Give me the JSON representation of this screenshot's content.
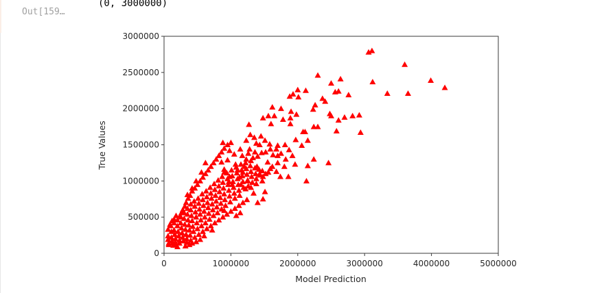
{
  "cell": {
    "prompt": "Out[159…",
    "output_text": "(0, 3000000)"
  },
  "colors": {
    "marker": "#ff0000",
    "axis": "#3a3a3a",
    "text": "#262626"
  },
  "chart_data": {
    "type": "scatter",
    "title": "",
    "xlabel": "Model Prediction",
    "ylabel": "True Values",
    "xlim": [
      0,
      5000000
    ],
    "ylim": [
      0,
      3000000
    ],
    "xticks": [
      0,
      1000000,
      2000000,
      3000000,
      4000000,
      5000000
    ],
    "xtick_labels": [
      "0",
      "1000000",
      "2000000",
      "3000000",
      "4000000",
      "5000000"
    ],
    "yticks": [
      0,
      500000,
      1000000,
      1500000,
      2000000,
      2500000,
      3000000
    ],
    "ytick_labels": [
      "0",
      "500000",
      "1000000",
      "1500000",
      "2000000",
      "2500000",
      "3000000"
    ],
    "grid": false,
    "legend": null,
    "marker": "triangle-up",
    "marker_color": "#ff0000",
    "units_note": "points listed in thousands [x, y]",
    "points_k": [
      [
        3060,
        2780
      ],
      [
        3110,
        2800
      ],
      [
        3600,
        2610
      ],
      [
        2300,
        2460
      ],
      [
        2500,
        2350
      ],
      [
        2640,
        2410
      ],
      [
        3120,
        2370
      ],
      [
        3990,
        2390
      ],
      [
        4200,
        2290
      ],
      [
        2120,
        2250
      ],
      [
        2560,
        2230
      ],
      [
        2610,
        2240
      ],
      [
        2760,
        2190
      ],
      [
        3340,
        2210
      ],
      [
        3650,
        2210
      ],
      [
        1930,
        2200
      ],
      [
        2000,
        2260
      ],
      [
        2010,
        2160
      ],
      [
        1880,
        2170
      ],
      [
        2370,
        2140
      ],
      [
        2410,
        2100
      ],
      [
        2260,
        2050
      ],
      [
        2230,
        1990
      ],
      [
        2480,
        1930
      ],
      [
        2500,
        1900
      ],
      [
        2610,
        1840
      ],
      [
        2700,
        1880
      ],
      [
        2820,
        1900
      ],
      [
        2920,
        1910
      ],
      [
        1620,
        2020
      ],
      [
        1750,
        2000
      ],
      [
        1900,
        1960
      ],
      [
        1560,
        1900
      ],
      [
        1650,
        1900
      ],
      [
        1480,
        1870
      ],
      [
        1890,
        1870
      ],
      [
        1980,
        1920
      ],
      [
        1270,
        1780
      ],
      [
        1600,
        1790
      ],
      [
        1890,
        1790
      ],
      [
        2240,
        1750
      ],
      [
        2300,
        1750
      ],
      [
        1780,
        1850
      ],
      [
        2580,
        1690
      ],
      [
        2940,
        1670
      ],
      [
        1290,
        1640
      ],
      [
        2080,
        1680
      ],
      [
        2110,
        1680
      ],
      [
        1970,
        1570
      ],
      [
        2150,
        1560
      ],
      [
        2060,
        1490
      ],
      [
        1870,
        1430
      ],
      [
        1590,
        1440
      ],
      [
        1550,
        1260
      ],
      [
        1920,
        1350
      ],
      [
        1960,
        1230
      ],
      [
        2240,
        1300
      ],
      [
        2150,
        1210
      ],
      [
        2460,
        1250
      ],
      [
        1560,
        1120
      ],
      [
        1680,
        1130
      ],
      [
        1740,
        1060
      ],
      [
        1860,
        1060
      ],
      [
        2130,
        1000
      ],
      [
        1470,
        1000
      ],
      [
        1340,
        830
      ],
      [
        1510,
        850
      ],
      [
        1400,
        700
      ],
      [
        1480,
        750
      ],
      [
        1300,
        910
      ],
      [
        1380,
        960
      ],
      [
        1430,
        1100
      ],
      [
        1590,
        1170
      ],
      [
        1180,
        1120
      ],
      [
        1100,
        1150
      ],
      [
        1200,
        1200
      ],
      [
        1390,
        1200
      ],
      [
        950,
        1290
      ],
      [
        970,
        990
      ],
      [
        1250,
        1000
      ],
      [
        1130,
        1050
      ],
      [
        1070,
        1230
      ],
      [
        1020,
        950
      ],
      [
        1150,
        950
      ],
      [
        1220,
        890
      ],
      [
        980,
        1060
      ],
      [
        900,
        1120
      ],
      [
        1230,
        1300
      ],
      [
        1330,
        1320
      ],
      [
        1400,
        1340
      ],
      [
        1460,
        1390
      ],
      [
        1520,
        1400
      ],
      [
        1630,
        1360
      ],
      [
        1700,
        1350
      ],
      [
        1750,
        1380
      ],
      [
        1820,
        1300
      ],
      [
        1700,
        1250
      ],
      [
        1620,
        1200
      ],
      [
        1800,
        1200
      ],
      [
        1360,
        1400
      ],
      [
        1300,
        1280
      ],
      [
        1260,
        1380
      ],
      [
        1430,
        1500
      ],
      [
        1380,
        1520
      ],
      [
        1510,
        1560
      ],
      [
        1580,
        1510
      ],
      [
        1700,
        1490
      ],
      [
        1680,
        1440
      ],
      [
        1810,
        1500
      ],
      [
        1140,
        1440
      ],
      [
        1280,
        1440
      ],
      [
        1350,
        1600
      ],
      [
        1450,
        1620
      ],
      [
        1230,
        1560
      ],
      [
        1170,
        1350
      ],
      [
        1050,
        1370
      ],
      [
        980,
        1420
      ],
      [
        860,
        1260
      ],
      [
        900,
        1160
      ],
      [
        60,
        330
      ],
      [
        60,
        240
      ],
      [
        60,
        190
      ],
      [
        70,
        140
      ],
      [
        70,
        120
      ],
      [
        100,
        380
      ],
      [
        110,
        300
      ],
      [
        110,
        220
      ],
      [
        120,
        170
      ],
      [
        130,
        140
      ],
      [
        140,
        110
      ],
      [
        150,
        420
      ],
      [
        150,
        320
      ],
      [
        160,
        260
      ],
      [
        170,
        200
      ],
      [
        170,
        150
      ],
      [
        180,
        120
      ],
      [
        200,
        460
      ],
      [
        200,
        380
      ],
      [
        210,
        300
      ],
      [
        220,
        240
      ],
      [
        230,
        180
      ],
      [
        230,
        140
      ],
      [
        250,
        500
      ],
      [
        250,
        420
      ],
      [
        260,
        350
      ],
      [
        270,
        280
      ],
      [
        280,
        220
      ],
      [
        290,
        170
      ],
      [
        300,
        560
      ],
      [
        300,
        480
      ],
      [
        310,
        400
      ],
      [
        320,
        330
      ],
      [
        330,
        260
      ],
      [
        340,
        200
      ],
      [
        350,
        620
      ],
      [
        350,
        540
      ],
      [
        360,
        460
      ],
      [
        370,
        390
      ],
      [
        380,
        320
      ],
      [
        390,
        250
      ],
      [
        400,
        680
      ],
      [
        400,
        600
      ],
      [
        410,
        520
      ],
      [
        420,
        450
      ],
      [
        430,
        370
      ],
      [
        440,
        300
      ],
      [
        450,
        720
      ],
      [
        460,
        650
      ],
      [
        470,
        570
      ],
      [
        480,
        500
      ],
      [
        490,
        420
      ],
      [
        500,
        340
      ],
      [
        510,
        760
      ],
      [
        520,
        690
      ],
      [
        530,
        610
      ],
      [
        540,
        540
      ],
      [
        550,
        460
      ],
      [
        560,
        380
      ],
      [
        570,
        820
      ],
      [
        580,
        740
      ],
      [
        590,
        660
      ],
      [
        600,
        580
      ],
      [
        610,
        500
      ],
      [
        620,
        420
      ],
      [
        630,
        860
      ],
      [
        640,
        780
      ],
      [
        650,
        700
      ],
      [
        660,
        630
      ],
      [
        670,
        550
      ],
      [
        680,
        470
      ],
      [
        690,
        910
      ],
      [
        700,
        830
      ],
      [
        710,
        760
      ],
      [
        720,
        680
      ],
      [
        730,
        600
      ],
      [
        740,
        520
      ],
      [
        750,
        960
      ],
      [
        760,
        880
      ],
      [
        770,
        800
      ],
      [
        780,
        720
      ],
      [
        790,
        640
      ],
      [
        800,
        560
      ],
      [
        810,
        1010
      ],
      [
        820,
        930
      ],
      [
        830,
        850
      ],
      [
        840,
        770
      ],
      [
        850,
        690
      ],
      [
        860,
        610
      ],
      [
        870,
        1060
      ],
      [
        880,
        980
      ],
      [
        890,
        900
      ],
      [
        900,
        820
      ],
      [
        910,
        740
      ],
      [
        920,
        660
      ],
      [
        940,
        1110
      ],
      [
        950,
        1030
      ],
      [
        960,
        950
      ],
      [
        970,
        870
      ],
      [
        980,
        790
      ],
      [
        990,
        710
      ],
      [
        1010,
        1150
      ],
      [
        1020,
        1070
      ],
      [
        1030,
        990
      ],
      [
        1040,
        910
      ],
      [
        1050,
        830
      ],
      [
        1060,
        760
      ],
      [
        1080,
        1190
      ],
      [
        1090,
        1110
      ],
      [
        1100,
        1030
      ],
      [
        1110,
        950
      ],
      [
        1120,
        870
      ],
      [
        1130,
        800
      ],
      [
        1150,
        1230
      ],
      [
        1160,
        1150
      ],
      [
        1170,
        1070
      ],
      [
        1180,
        990
      ],
      [
        1190,
        910
      ],
      [
        1220,
        1250
      ],
      [
        1230,
        1170
      ],
      [
        1240,
        1090
      ],
      [
        1250,
        1010
      ],
      [
        1260,
        930
      ],
      [
        1290,
        1210
      ],
      [
        1300,
        1130
      ],
      [
        1310,
        1060
      ],
      [
        1320,
        980
      ],
      [
        1360,
        1180
      ],
      [
        1370,
        1100
      ],
      [
        1380,
        1030
      ],
      [
        1420,
        1160
      ],
      [
        1430,
        1080
      ],
      [
        1470,
        1140
      ],
      [
        1480,
        1060
      ],
      [
        1520,
        1100
      ],
      [
        310,
        650
      ],
      [
        280,
        600
      ],
      [
        260,
        560
      ],
      [
        240,
        520
      ],
      [
        330,
        700
      ],
      [
        360,
        760
      ],
      [
        390,
        800
      ],
      [
        420,
        860
      ],
      [
        460,
        900
      ],
      [
        500,
        950
      ],
      [
        540,
        1000
      ],
      [
        580,
        1050
      ],
      [
        620,
        1100
      ],
      [
        660,
        1150
      ],
      [
        700,
        1200
      ],
      [
        740,
        1250
      ],
      [
        780,
        1300
      ],
      [
        820,
        1350
      ],
      [
        860,
        1400
      ],
      [
        900,
        1450
      ],
      [
        950,
        1500
      ],
      [
        1000,
        1530
      ],
      [
        880,
        1530
      ],
      [
        620,
        1250
      ],
      [
        560,
        1120
      ],
      [
        480,
        1000
      ],
      [
        420,
        900
      ],
      [
        350,
        810
      ],
      [
        180,
        520
      ],
      [
        150,
        470
      ],
      [
        120,
        450
      ],
      [
        90,
        400
      ],
      [
        340,
        150
      ],
      [
        400,
        180
      ],
      [
        460,
        220
      ],
      [
        520,
        260
      ],
      [
        580,
        300
      ],
      [
        640,
        340
      ],
      [
        700,
        380
      ],
      [
        760,
        420
      ],
      [
        820,
        460
      ],
      [
        880,
        500
      ],
      [
        940,
        540
      ],
      [
        1000,
        580
      ],
      [
        1060,
        620
      ],
      [
        1120,
        660
      ],
      [
        1180,
        700
      ],
      [
        1240,
        740
      ],
      [
        900,
        590
      ],
      [
        720,
        320
      ],
      [
        600,
        240
      ],
      [
        540,
        190
      ],
      [
        480,
        160
      ],
      [
        420,
        140
      ],
      [
        380,
        120
      ],
      [
        200,
        90
      ],
      [
        320,
        100
      ],
      [
        1080,
        520
      ],
      [
        1140,
        560
      ]
    ]
  }
}
